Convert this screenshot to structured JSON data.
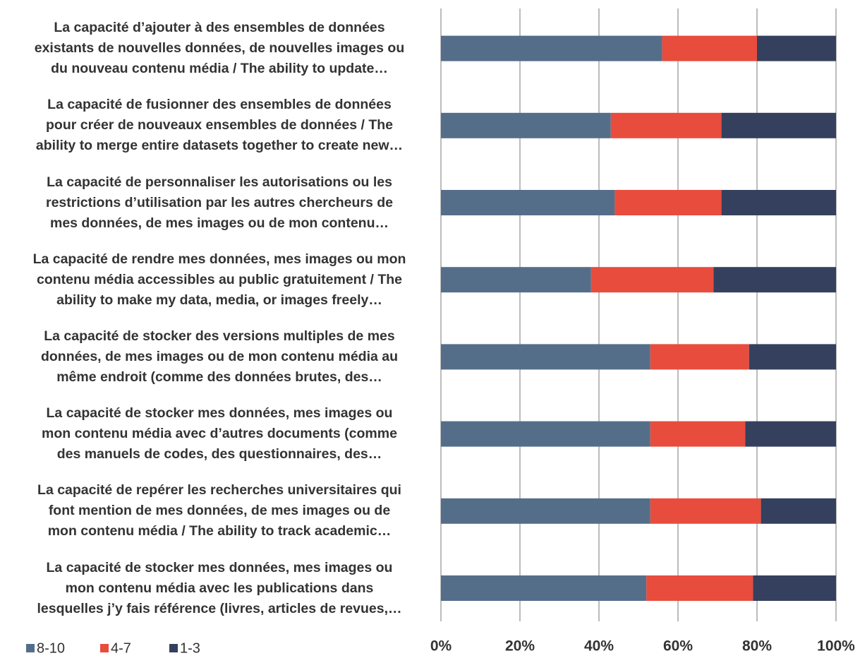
{
  "chart_data": {
    "type": "stacked_barh",
    "categories": [
      "La capacité d’ajouter à des ensembles de données\nexistants de nouvelles données, de nouvelles images ou\ndu nouveau contenu média / The ability to update…",
      "La capacité de fusionner des ensembles de données\npour créer de nouveaux ensembles de données / The\nability to merge entire datasets together to create new…",
      "La capacité de personnaliser les autorisations ou les\nrestrictions d’utilisation par les autres chercheurs de\nmes données, de mes images ou de mon contenu…",
      "La capacité de rendre mes données, mes images ou mon\ncontenu média accessibles au public gratuitement / The\nability to make my data, media, or images freely…",
      "La capacité de stocker des versions multiples de mes\ndonnées, de mes images ou de mon contenu média au\nmême endroit (comme des données brutes, des…",
      "La capacité de stocker mes données, mes images ou\nmon contenu média avec d’autres documents (comme\ndes manuels de codes, des questionnaires, des…",
      "La capacité de repérer les recherches universitaires qui\nfont mention de mes données, de mes images ou de\nmon contenu média / The ability to track academic…",
      "La capacité de stocker mes données, mes images ou\nmon contenu média avec les publications dans\nlesquelles j’y fais référence (livres, articles de revues,…"
    ],
    "series": [
      {
        "name": "8-10",
        "color": "#546e8a",
        "values": [
          56,
          43,
          44,
          38,
          53,
          53,
          53,
          52
        ]
      },
      {
        "name": "4-7",
        "color": "#e84c3d",
        "values": [
          24,
          28,
          27,
          31,
          25,
          24,
          28,
          27
        ]
      },
      {
        "name": "1-3",
        "color": "#34405e",
        "values": [
          20,
          29,
          29,
          31,
          22,
          23,
          19,
          21
        ]
      }
    ],
    "xlim": [
      0,
      100
    ],
    "xticks": [
      {
        "value": 0,
        "label": "0%"
      },
      {
        "value": 20,
        "label": "20%"
      },
      {
        "value": 40,
        "label": "40%"
      },
      {
        "value": 60,
        "label": "60%"
      },
      {
        "value": 80,
        "label": "80%"
      },
      {
        "value": 100,
        "label": "100%"
      }
    ],
    "grid": true,
    "legend": "bottom-left"
  }
}
